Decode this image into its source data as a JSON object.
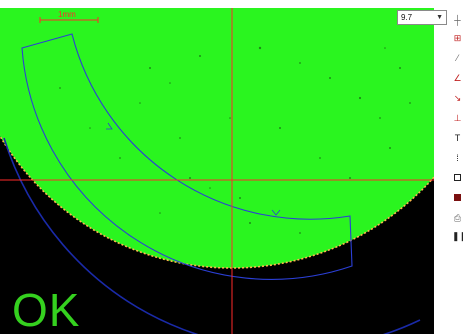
{
  "viewer": {
    "scale_label": "1mm",
    "result_text": "OK",
    "zoom_value": "9.7"
  },
  "colors": {
    "part_fill": "#2af51f",
    "crosshair": "#ff2a2a",
    "tolerance_band": "#2b3fd6",
    "background": "#000000",
    "result_text": "#35d11f"
  },
  "toolbar": {
    "tools": [
      "crosshair-tool-icon",
      "grid-tool-icon",
      "line-tool-icon",
      "angle-tool-icon",
      "edge-tool-icon",
      "baseline-tool-icon",
      "text-tool-icon",
      "point-tool-icon",
      "frame-tool-icon",
      "record-tool-icon",
      "print-tool-icon",
      "pause-tool-icon"
    ]
  }
}
